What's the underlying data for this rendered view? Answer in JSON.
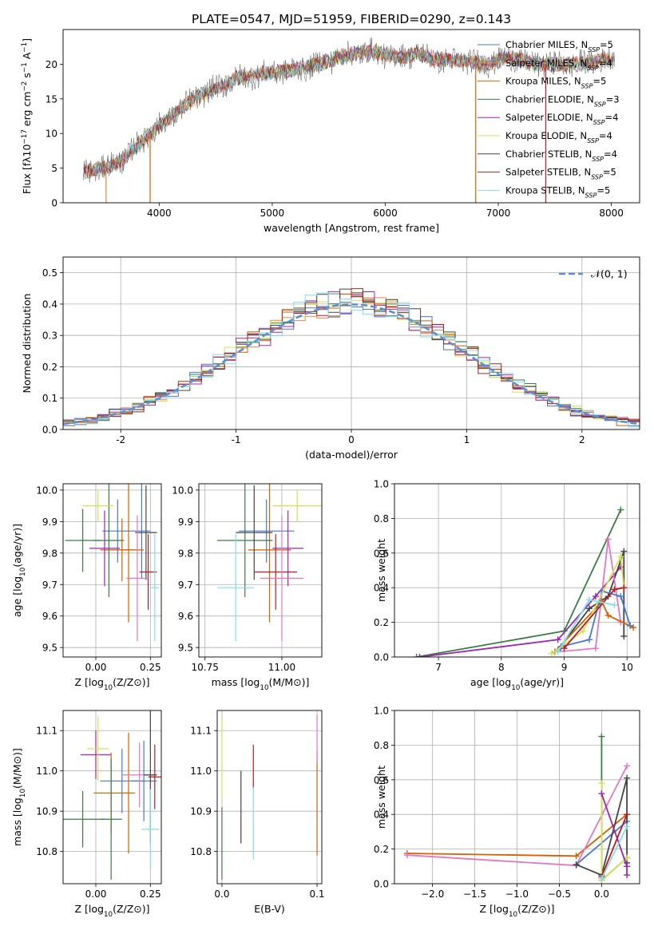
{
  "figure_title": "PLATE=0547, MJD=51959, FIBERID=0290, z=0.143",
  "colors": {
    "chabrier_miles": "#4878d0",
    "salpeter_miles": "#ee854a",
    "kroupa_miles": "#d65f00",
    "chabrier_elodie": "#3a7d44",
    "salpeter_elodie": "#9c27b0",
    "kroupa_elodie": "#d4e157",
    "chabrier_stelib": "#444444",
    "salpeter_stelib": "#b71c1c",
    "kroupa_stelib": "#80deea",
    "pink": "#e377c2",
    "normal_curve": "#5b8ed6"
  },
  "chart_data": [
    {
      "id": "spectrum",
      "type": "line",
      "title": "PLATE=0547, MJD=51959, FIBERID=0290, z=0.143",
      "xlabel": "wavelength [Angstrom, rest frame]",
      "ylabel": "Flux [fλ10⁻¹⁷ erg cm⁻² s⁻¹ A⁻¹]",
      "xlim": [
        3150,
        8250
      ],
      "ylim": [
        0,
        25
      ],
      "xticks": [
        4000,
        5000,
        6000,
        7000,
        8000
      ],
      "yticks": [
        0,
        5,
        10,
        15,
        20
      ],
      "legend_position": "top-right",
      "series_names": [
        "Chabrier MILES, N_SSP=5",
        "Salpeter MILES, N_SSP=4",
        "Kroupa MILES, N_SSP=5",
        "Chabrier ELODIE, N_SSP=3",
        "Salpeter ELODIE, N_SSP=4",
        "Kroupa ELODIE, N_SSP=4",
        "Chabrier STELIB, N_SSP=4",
        "Salpeter STELIB, N_SSP=5",
        "Kroupa STELIB, N_SSP=5"
      ],
      "continuum": {
        "x": [
          3330,
          3450,
          3550,
          3700,
          3850,
          4000,
          4150,
          4300,
          4500,
          4700,
          4900,
          5100,
          5300,
          5500,
          5700,
          5900,
          6100,
          6300,
          6500,
          6700,
          6900,
          7100,
          7300,
          7500,
          7700,
          7900,
          8030
        ],
        "y": [
          4.5,
          4.8,
          5.2,
          6.5,
          9.0,
          11.0,
          13.0,
          15.0,
          16.5,
          18.0,
          18.5,
          19.0,
          19.5,
          20.5,
          21.5,
          21.8,
          21.0,
          21.5,
          20.5,
          20.5,
          20.0,
          21.0,
          20.0,
          20.0,
          20.0,
          20.5,
          20.8
        ]
      },
      "wavelength_range": [
        3330,
        8030
      ]
    },
    {
      "id": "residuals",
      "type": "bar",
      "xlabel": "(data-model)/error",
      "ylabel": "Normed distribution",
      "xlim": [
        -2.5,
        2.5
      ],
      "ylim": [
        0,
        0.55
      ],
      "xticks": [
        -2,
        -1,
        0,
        1,
        2
      ],
      "yticks": [
        0.0,
        0.1,
        0.2,
        0.3,
        0.4,
        0.5
      ],
      "legend_position": "top-right",
      "legend_label": "𝒩(0, 1)",
      "bin_width": 0.1,
      "normal_curve": {
        "mean": 0,
        "std": 1
      }
    },
    {
      "id": "age_vs_Z",
      "type": "scatter",
      "xlabel": "Z [log₁₀(Z/Z⊙)]",
      "ylabel": "age  [log₁₀(age/yr)]",
      "xlim": [
        -0.15,
        0.3
      ],
      "ylim": [
        9.47,
        10.02
      ],
      "xticks": [
        0.0,
        0.25
      ],
      "yticks": [
        9.5,
        9.6,
        9.7,
        9.8,
        9.9,
        10.0
      ],
      "points": [
        {
          "x": 0.1,
          "y": 9.87,
          "xerr": 0.07,
          "yerr": 0.1,
          "color_key": "chabrier_miles"
        },
        {
          "x": 0.21,
          "y": 9.87,
          "xerr": 0.04,
          "yerr": 0.15,
          "color_key": "chabrier_miles"
        },
        {
          "x": 0.12,
          "y": 9.81,
          "xerr": 0.1,
          "yerr": 0.1,
          "color_key": "kroupa_miles"
        },
        {
          "x": 0.15,
          "y": 9.81,
          "xerr": 0.03,
          "yerr": 0.23,
          "color_key": "kroupa_miles"
        },
        {
          "x": -0.06,
          "y": 9.84,
          "xerr": 0.08,
          "yerr": 0.1,
          "color_key": "chabrier_elodie"
        },
        {
          "x": 0.06,
          "y": 9.84,
          "xerr": 0.07,
          "yerr": 0.18,
          "color_key": "chabrier_elodie"
        },
        {
          "x": 0.04,
          "y": 9.815,
          "xerr": 0.07,
          "yerr": 0.12,
          "color_key": "salpeter_elodie"
        },
        {
          "x": 0.01,
          "y": 9.95,
          "xerr": 0.07,
          "yerr": 0.05,
          "color_key": "kroupa_elodie"
        },
        {
          "x": 0.23,
          "y": 9.865,
          "xerr": 0.05,
          "yerr": 0.15,
          "color_key": "chabrier_stelib"
        },
        {
          "x": 0.24,
          "y": 9.74,
          "xerr": 0.04,
          "yerr": 0.12,
          "color_key": "salpeter_stelib"
        },
        {
          "x": 0.19,
          "y": 9.72,
          "xerr": 0.05,
          "yerr": 0.2,
          "color_key": "pink"
        },
        {
          "x": 0.27,
          "y": 9.69,
          "xerr": 0.02,
          "yerr": 0.17,
          "color_key": "kroupa_stelib"
        }
      ]
    },
    {
      "id": "age_vs_mass",
      "type": "scatter",
      "xlabel": "mass [log₁₀(M/M⊙)]",
      "ylabel": "",
      "xlim": [
        10.73,
        11.13
      ],
      "ylim": [
        9.47,
        10.02
      ],
      "xticks": [
        10.75,
        11.0
      ],
      "yticks": [
        9.5,
        9.6,
        9.7,
        9.8,
        9.9,
        10.0
      ],
      "points": [
        {
          "x": 10.95,
          "y": 9.87,
          "xerr": 0.09,
          "yerr": 0.1,
          "color_key": "chabrier_miles"
        },
        {
          "x": 10.96,
          "y": 9.81,
          "xerr": 0.07,
          "yerr": 0.23,
          "color_key": "kroupa_miles"
        },
        {
          "x": 10.88,
          "y": 9.84,
          "xerr": 0.09,
          "yerr": 0.18,
          "color_key": "chabrier_elodie"
        },
        {
          "x": 11.02,
          "y": 9.815,
          "xerr": 0.05,
          "yerr": 0.12,
          "color_key": "salpeter_elodie"
        },
        {
          "x": 11.05,
          "y": 9.95,
          "xerr": 0.08,
          "yerr": 0.05,
          "color_key": "kroupa_elodie"
        },
        {
          "x": 10.98,
          "y": 9.74,
          "xerr": 0.07,
          "yerr": 0.12,
          "color_key": "salpeter_stelib"
        },
        {
          "x": 11.0,
          "y": 9.72,
          "xerr": 0.07,
          "yerr": 0.2,
          "color_key": "pink"
        },
        {
          "x": 10.91,
          "y": 9.865,
          "xerr": 0.06,
          "yerr": 0.15,
          "color_key": "chabrier_stelib"
        },
        {
          "x": 10.85,
          "y": 9.69,
          "xerr": 0.06,
          "yerr": 0.17,
          "color_key": "kroupa_stelib"
        }
      ]
    },
    {
      "id": "weight_vs_age",
      "type": "line",
      "xlabel": "age  [log₁₀(age/yr)]",
      "ylabel": "mass weight",
      "xlim": [
        6.3,
        10.2
      ],
      "ylim": [
        0,
        1
      ],
      "xticks": [
        7,
        8,
        9,
        10
      ],
      "yticks": [
        0.0,
        0.2,
        0.4,
        0.6,
        0.8,
        1.0
      ],
      "series": [
        {
          "color_key": "chabrier_elodie",
          "x": [
            6.65,
            9.0,
            9.9
          ],
          "y": [
            0.0,
            0.15,
            0.85
          ]
        },
        {
          "color_key": "salpeter_elodie",
          "x": [
            6.7,
            8.9,
            9.5,
            9.9
          ],
          "y": [
            0.0,
            0.1,
            0.35,
            0.52
          ]
        },
        {
          "color_key": "chabrier_stelib",
          "x": [
            8.9,
            9.4,
            9.7,
            9.95,
            9.95
          ],
          "y": [
            0.04,
            0.28,
            0.35,
            0.61,
            0.12
          ]
        },
        {
          "color_key": "pink",
          "x": [
            8.9,
            9.5,
            9.7,
            9.9
          ],
          "y": [
            0.03,
            0.05,
            0.68,
            0.2
          ]
        },
        {
          "color_key": "kroupa_miles",
          "x": [
            8.85,
            9.6,
            9.7,
            10.1
          ],
          "y": [
            0.03,
            0.32,
            0.24,
            0.17
          ]
        },
        {
          "color_key": "chabrier_miles",
          "x": [
            8.95,
            9.4,
            9.6,
            9.9,
            10.05
          ],
          "y": [
            0.06,
            0.1,
            0.38,
            0.35,
            0.18
          ]
        },
        {
          "color_key": "kroupa_elodie",
          "x": [
            8.8,
            9.3,
            9.9,
            9.95
          ],
          "y": [
            0.02,
            0.15,
            0.58,
            0.4
          ]
        },
        {
          "color_key": "salpeter_stelib",
          "x": [
            9.0,
            9.8,
            9.95
          ],
          "y": [
            0.05,
            0.39,
            0.4
          ]
        },
        {
          "color_key": "kroupa_stelib",
          "x": [
            8.9,
            9.4,
            9.8
          ],
          "y": [
            0.03,
            0.33,
            0.3
          ]
        }
      ]
    },
    {
      "id": "mass_vs_Z",
      "type": "scatter",
      "xlabel": "Z [log₁₀(Z/Z⊙)]",
      "ylabel": "mass [log₁₀(M/M⊙)]",
      "xlim": [
        -0.15,
        0.3
      ],
      "ylim": [
        10.72,
        11.15
      ],
      "xticks": [
        0.0,
        0.25
      ],
      "yticks": [
        10.8,
        10.9,
        11.0,
        11.1
      ],
      "points": [
        {
          "x": 0.12,
          "y": 10.975,
          "xerr": 0.1,
          "yerr": 0.08,
          "color_key": "chabrier_miles"
        },
        {
          "x": 0.22,
          "y": 10.975,
          "xerr": 0.06,
          "yerr": 0.1,
          "color_key": "chabrier_miles"
        },
        {
          "x": 0.07,
          "y": 10.945,
          "xerr": 0.08,
          "yerr": 0.1,
          "color_key": "kroupa_miles"
        },
        {
          "x": 0.15,
          "y": 10.945,
          "xerr": 0.03,
          "yerr": 0.15,
          "color_key": "kroupa_miles"
        },
        {
          "x": -0.06,
          "y": 10.88,
          "xerr": 0.1,
          "yerr": 0.07,
          "color_key": "chabrier_elodie"
        },
        {
          "x": 0.07,
          "y": 10.88,
          "xerr": 0.05,
          "yerr": 0.15,
          "color_key": "chabrier_elodie"
        },
        {
          "x": 0.0,
          "y": 11.04,
          "xerr": 0.07,
          "yerr": 0.06,
          "color_key": "salpeter_elodie"
        },
        {
          "x": 0.01,
          "y": 11.055,
          "xerr": 0.05,
          "yerr": 0.08,
          "color_key": "kroupa_elodie"
        },
        {
          "x": 0.2,
          "y": 10.99,
          "xerr": 0.08,
          "yerr": 0.08,
          "color_key": "pink"
        },
        {
          "x": 0.25,
          "y": 10.99,
          "xerr": 0.03,
          "yerr": 0.17,
          "color_key": "chabrier_stelib"
        },
        {
          "x": 0.27,
          "y": 10.985,
          "xerr": 0.03,
          "yerr": 0.08,
          "color_key": "salpeter_stelib"
        },
        {
          "x": 0.25,
          "y": 10.855,
          "xerr": 0.04,
          "yerr": 0.1,
          "color_key": "kroupa_stelib"
        }
      ]
    },
    {
      "id": "mass_vs_ebv",
      "type": "scatter",
      "xlabel": "E(B-V)",
      "ylabel": "",
      "xlim": [
        -0.005,
        0.105
      ],
      "ylim": [
        10.72,
        11.15
      ],
      "xticks": [
        0.0,
        0.1
      ],
      "yticks": [
        10.8,
        10.9,
        11.0,
        11.1
      ],
      "points": [
        {
          "x": 0.0,
          "y": 10.82,
          "xerr": 0,
          "yerr": 0.09,
          "color_key": "chabrier_elodie"
        },
        {
          "x": 0.0,
          "y": 11.03,
          "xerr": 0,
          "yerr": 0.1,
          "color_key": "kroupa_elodie"
        },
        {
          "x": 0.02,
          "y": 10.91,
          "xerr": 0,
          "yerr": 0.09,
          "color_key": "chabrier_stelib"
        },
        {
          "x": 0.033,
          "y": 11.01,
          "xerr": 0,
          "yerr": 0.055,
          "color_key": "salpeter_stelib"
        },
        {
          "x": 0.033,
          "y": 10.87,
          "xerr": 0,
          "yerr": 0.09,
          "color_key": "kroupa_stelib"
        },
        {
          "x": 0.1,
          "y": 10.92,
          "xerr": 0,
          "yerr": 0.13,
          "color_key": "kroupa_miles"
        },
        {
          "x": 0.1,
          "y": 11.08,
          "xerr": 0,
          "yerr": 0.06,
          "color_key": "pink"
        }
      ]
    },
    {
      "id": "weight_vs_Z",
      "type": "line",
      "xlabel": "Z [log₁₀(Z/Z⊙)]",
      "ylabel": "mass weight",
      "xlim": [
        -2.45,
        0.45
      ],
      "ylim": [
        0,
        1
      ],
      "xticks": [
        -2.0,
        -1.5,
        -1.0,
        -0.5,
        0.0
      ],
      "yticks": [
        0.0,
        0.2,
        0.4,
        0.6,
        0.8,
        1.0
      ],
      "series": [
        {
          "color_key": "kroupa_miles",
          "x": [
            -2.3,
            -0.3,
            0.3
          ],
          "y": [
            0.175,
            0.16,
            0.4
          ]
        },
        {
          "color_key": "pink",
          "x": [
            -2.3,
            -0.3,
            0.3
          ],
          "y": [
            0.165,
            0.105,
            0.68
          ]
        },
        {
          "color_key": "chabrier_miles",
          "x": [
            -0.3,
            0.3
          ],
          "y": [
            0.11,
            0.36
          ]
        },
        {
          "color_key": "chabrier_stelib",
          "x": [
            -0.3,
            0.0,
            0.3,
            0.3
          ],
          "y": [
            0.11,
            0.05,
            0.61,
            0.12
          ]
        },
        {
          "color_key": "chabrier_elodie",
          "x": [
            0.0,
            0.0,
            0.3
          ],
          "y": [
            0.85,
            0.02,
            0.15
          ]
        },
        {
          "color_key": "kroupa_elodie",
          "x": [
            0.0,
            0.0,
            0.3
          ],
          "y": [
            0.58,
            0.02,
            0.15
          ]
        },
        {
          "color_key": "salpeter_elodie",
          "x": [
            0.0,
            0.3,
            0.3
          ],
          "y": [
            0.52,
            0.1,
            0.05
          ]
        },
        {
          "color_key": "salpeter_stelib",
          "x": [
            0.0,
            0.3
          ],
          "y": [
            0.04,
            0.4
          ]
        },
        {
          "color_key": "kroupa_stelib",
          "x": [
            0.0,
            0.3
          ],
          "y": [
            0.03,
            0.33
          ]
        }
      ]
    }
  ]
}
